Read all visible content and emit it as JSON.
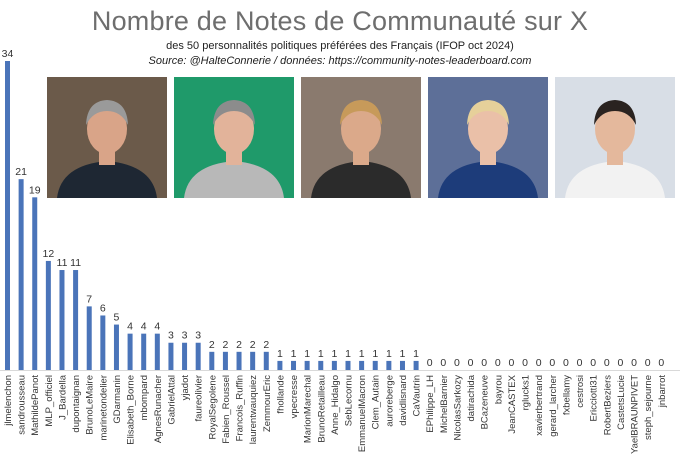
{
  "header": {
    "title": "Nombre de Notes de Communauté sur X",
    "subtitle": "des 50 personnalités politiques préférées des Français (IFOP oct 2024)",
    "source": "Source: @HalteConnerie / données: https://community-notes-leaderboard.com"
  },
  "photos": [
    {
      "name": "portrait-photo-1",
      "icon": "portrait-man-glasses-dark-suit",
      "bg": "#6b5a4a",
      "skin": "#d9a488",
      "hair": "#9a9a9a",
      "cloth": "#1e2733"
    },
    {
      "name": "portrait-photo-2",
      "icon": "portrait-woman-glasses-grey-hair",
      "bg": "#1f9a6a",
      "skin": "#e2b39a",
      "hair": "#8c8c8c",
      "cloth": "#b8b8b8"
    },
    {
      "name": "portrait-photo-3",
      "icon": "portrait-woman-blonde-crowd",
      "bg": "#8a7a6e",
      "skin": "#dba98a",
      "hair": "#c79a5a",
      "cloth": "#2b2b2b"
    },
    {
      "name": "portrait-photo-4",
      "icon": "portrait-woman-blonde-blue-jacket",
      "bg": "#5d6f98",
      "skin": "#eac0a8",
      "hair": "#e6d09a",
      "cloth": "#1d3c7a"
    },
    {
      "name": "portrait-photo-5",
      "icon": "portrait-young-man-white-shirt",
      "bg": "#d8dee6",
      "skin": "#e4b89c",
      "hair": "#2a2320",
      "cloth": "#f2f2f2"
    }
  ],
  "chart_data": {
    "type": "bar",
    "bar_color": "#4a74b9",
    "categories": [
      "jlmelenchon",
      "sandrousseau",
      "MathildePanot",
      "MLP_officiel",
      "J_Bardella",
      "dupontaignan",
      "BrunoLeMaire",
      "marinetondelier",
      "GDarmanin",
      "Elisabeth_Borne",
      "mbompard",
      "AgnesRunacher",
      "GabrielAttal",
      "yjadot",
      "faureolivier",
      "RoyalSegolene",
      "Fabien_Roussel",
      "Francois_Ruffin",
      "laurentwauquiez",
      "ZemmourEric",
      "fhollande",
      "vpecresse",
      "MarionMarechal",
      "BrunoRetailleau",
      "Anne_Hidalgo",
      "SebLecornu",
      "EmmanuelMacron",
      "Clem_Autain",
      "auroreberge",
      "davidlisnard",
      "CaVautrin",
      "EPhilippe_LH",
      "MichelBarnier",
      "NicolasSarkozy",
      "datirachida",
      "BCazeneuve",
      "bayrou",
      "JeanCASTEX",
      "rglucks1",
      "xavierbertrand",
      "gerard_larcher",
      "fxbellamy",
      "cestrosi",
      "Ericciotti31",
      "RobertBeziers",
      "CastetsLucie",
      "YaelBRAUNPIVET",
      "steph_sejourne",
      "jnbarrot"
    ],
    "values": [
      34,
      21,
      19,
      12,
      11,
      11,
      7,
      6,
      5,
      4,
      4,
      4,
      3,
      3,
      3,
      2,
      2,
      2,
      2,
      2,
      1,
      1,
      1,
      1,
      1,
      1,
      1,
      1,
      1,
      1,
      1,
      0,
      0,
      0,
      0,
      0,
      0,
      0,
      0,
      0,
      0,
      0,
      0,
      0,
      0,
      0,
      0,
      0,
      0
    ],
    "ylim": [
      0,
      34
    ],
    "grid": false,
    "data_labels": true
  }
}
